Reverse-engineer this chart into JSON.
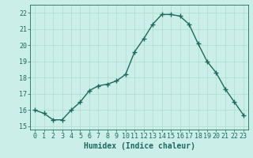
{
  "x": [
    0,
    1,
    2,
    3,
    4,
    5,
    6,
    7,
    8,
    9,
    10,
    11,
    12,
    13,
    14,
    15,
    16,
    17,
    18,
    19,
    20,
    21,
    22,
    23
  ],
  "y": [
    16.0,
    15.8,
    15.4,
    15.4,
    16.0,
    16.5,
    17.2,
    17.5,
    17.6,
    17.8,
    18.2,
    19.6,
    20.4,
    21.3,
    21.9,
    21.9,
    21.8,
    21.3,
    20.1,
    19.0,
    18.3,
    17.3,
    16.5,
    15.7
  ],
  "line_color": "#1a6b5e",
  "bg_color": "#cceee8",
  "grid_color": "#aaddcc",
  "xlabel": "Humidex (Indice chaleur)",
  "ylim": [
    14.8,
    22.5
  ],
  "xlim": [
    -0.5,
    23.5
  ],
  "yticks": [
    15,
    16,
    17,
    18,
    19,
    20,
    21,
    22
  ],
  "xticks": [
    0,
    1,
    2,
    3,
    4,
    5,
    6,
    7,
    8,
    9,
    10,
    11,
    12,
    13,
    14,
    15,
    16,
    17,
    18,
    19,
    20,
    21,
    22,
    23
  ],
  "marker": "+",
  "markersize": 4,
  "linewidth": 1.0,
  "xlabel_fontsize": 7,
  "tick_fontsize": 6
}
